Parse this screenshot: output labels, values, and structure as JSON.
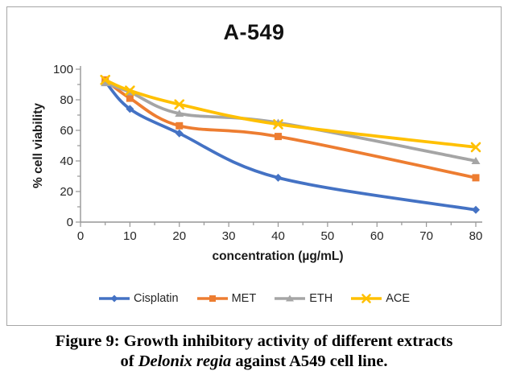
{
  "figure": {
    "caption_line1": "Figure 9: Growth inhibitory activity of different extracts",
    "caption_line2_prefix": "of ",
    "caption_line2_italic": "Delonix regia",
    "caption_line2_suffix": " against A549 cell line."
  },
  "chart_data": {
    "type": "line",
    "title": "A-549",
    "xlabel": "concentration (µg/mL)",
    "ylabel": "% cell viability",
    "x": [
      5,
      10,
      20,
      40,
      80
    ],
    "xlim": [
      0,
      80
    ],
    "ylim": [
      0,
      100
    ],
    "x_ticks": [
      0,
      10,
      20,
      30,
      40,
      50,
      60,
      70,
      80
    ],
    "y_ticks": [
      0,
      20,
      40,
      60,
      80,
      100
    ],
    "grid": false,
    "legend_position": "bottom",
    "line_style": "smooth",
    "axis_color": "#969696",
    "tick_label_color": "#262626",
    "series": [
      {
        "name": "Cisplatin",
        "color": "#4472C4",
        "marker": "diamond",
        "values": [
          92,
          74,
          58,
          29,
          8
        ]
      },
      {
        "name": "MET",
        "color": "#ED7D31",
        "marker": "square",
        "values": [
          93,
          81,
          63,
          56,
          29
        ]
      },
      {
        "name": "ETH",
        "color": "#A5A5A5",
        "marker": "triangle",
        "values": [
          91,
          85,
          71,
          65,
          40
        ]
      },
      {
        "name": "ACE",
        "color": "#FFC000",
        "marker": "x",
        "values": [
          93,
          86,
          77,
          64,
          49
        ]
      }
    ]
  }
}
